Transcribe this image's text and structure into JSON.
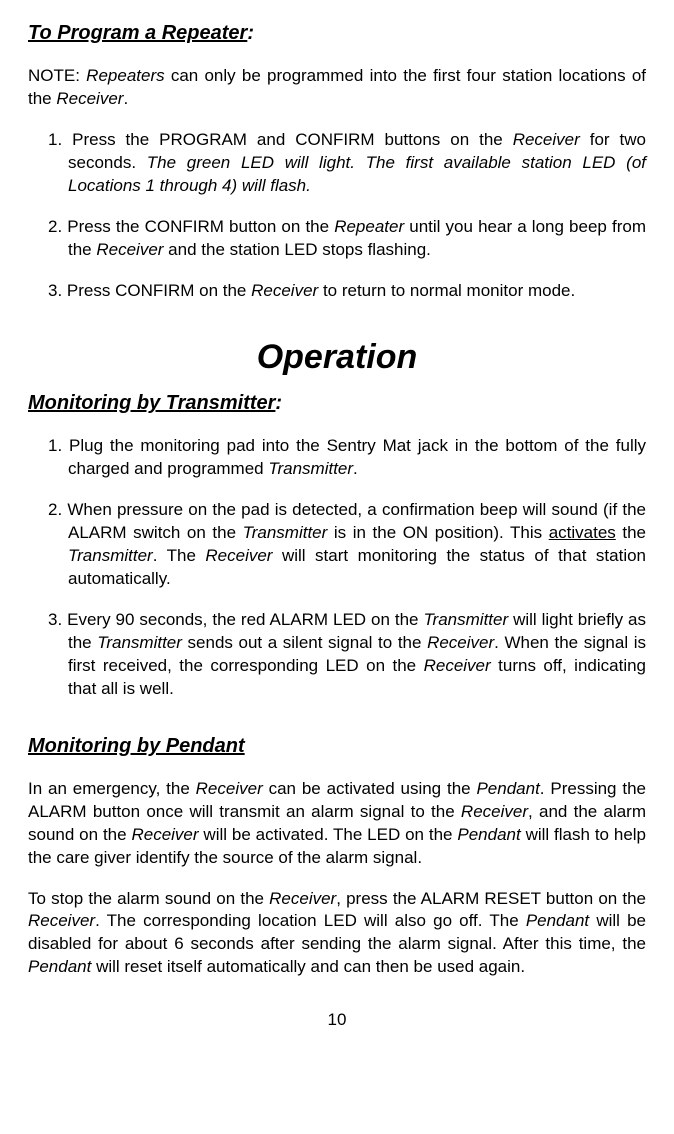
{
  "section1": {
    "heading": "To Program a Repeater",
    "colon": ":",
    "note_prefix": "NOTE:  ",
    "note_italic1": "Repeaters",
    "note_mid": " can only be programmed into the first four station locations of the ",
    "note_italic2": "Receiver",
    "note_suffix": ".",
    "item1_prefix": "1. Press the PROGRAM and CONFIRM buttons on the ",
    "item1_italic1": "Receiver",
    "item1_mid": " for two seconds.  ",
    "item1_italic2": "The green LED will light. The first available station LED (of Locations 1 through 4) will flash.",
    "item2_prefix": "2. Press the CONFIRM button on the ",
    "item2_italic1": "Repeater",
    "item2_mid1": " until you hear a long beep from the ",
    "item2_italic2": "Receiver",
    "item2_suffix": " and the station LED stops flashing.",
    "item3_prefix": "3. Press CONFIRM on the ",
    "item3_italic1": "Receiver",
    "item3_suffix": " to return to normal monitor mode."
  },
  "main_heading": "Operation",
  "section2": {
    "heading": "Monitoring by Transmitter",
    "colon": ":",
    "item1_prefix": "1. Plug the monitoring pad into the Sentry Mat jack in the bottom of the fully charged and programmed ",
    "item1_italic1": "Transmitter",
    "item1_suffix": ".",
    "item2_prefix": "2. When pressure on the pad is detected, a confirmation beep will sound (if the ALARM switch on the ",
    "item2_italic1": "Transmitter",
    "item2_mid1": " is in the ON position).  This ",
    "item2_underline": "activates",
    "item2_mid2": " the ",
    "item2_italic2": "Transmitter",
    "item2_mid3": ".  The ",
    "item2_italic3": "Receiver",
    "item2_suffix": " will start monitoring the status of that station automatically.",
    "item3_prefix": "3. Every 90 seconds, the red ALARM LED on the ",
    "item3_italic1": "Transmitter",
    "item3_mid1": " will light briefly as the ",
    "item3_italic2": "Transmitter",
    "item3_mid2": " sends out a silent signal to the ",
    "item3_italic3": "Receiver",
    "item3_mid3": ".  When the signal is first received, the corresponding LED on the ",
    "item3_italic4": "Receiver",
    "item3_suffix": " turns off, indicating that all is well."
  },
  "section3": {
    "heading": "Monitoring by Pendant",
    "para1_prefix": "In an emergency, the ",
    "para1_italic1": "Receiver",
    "para1_mid1": " can be activated using the ",
    "para1_italic2": "Pendant",
    "para1_mid2": ".  Pressing the ALARM button once will transmit an alarm signal to the ",
    "para1_italic3": "Receiver",
    "para1_mid3": ", and the alarm sound on the ",
    "para1_italic4": "Receiver",
    "para1_mid4": " will be activated.  The  LED on the ",
    "para1_italic5": "Pendant",
    "para1_suffix": " will flash to help the care giver identify the source of the alarm signal.",
    "para2_prefix": "To stop the alarm sound on the ",
    "para2_italic1": "Receiver",
    "para2_mid1": ", press the ALARM RESET button on the ",
    "para2_italic2": "Receiver",
    "para2_mid2": ".  The corresponding location LED will also go off.  The ",
    "para2_italic3": "Pendant",
    "para2_mid3": " will be disabled for about 6 seconds after sending the alarm signal.  After this time, the ",
    "para2_italic4": "Pendant",
    "para2_suffix": " will reset itself automatically and can then be used again."
  },
  "page_number": "10"
}
